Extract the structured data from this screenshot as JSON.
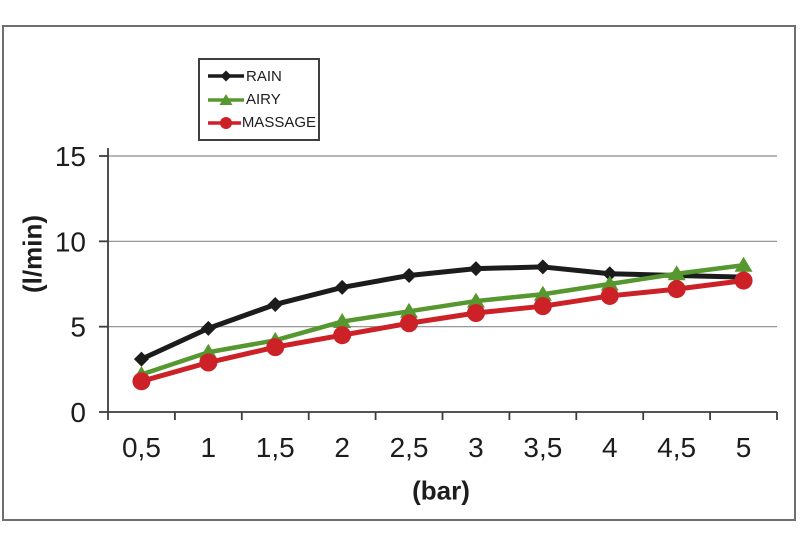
{
  "chart_data": {
    "type": "line",
    "title": "",
    "x_label": "(bar)",
    "y_label": "(l/min)",
    "categories": [
      "0,5",
      "1",
      "1,5",
      "2",
      "2,5",
      "3",
      "3,5",
      "4",
      "4,5",
      "5"
    ],
    "x_values": [
      0.5,
      1,
      1.5,
      2,
      2.5,
      3,
      3.5,
      4,
      4.5,
      5
    ],
    "y_ticks": [
      0,
      5,
      10,
      15
    ],
    "ylim": [
      0,
      15
    ],
    "grid": "horizontal-gridlines",
    "legend_position": "top-left-inside",
    "series": [
      {
        "name": "RAIN",
        "marker": "diamond",
        "color": "#1c1c1c",
        "values": [
          3.1,
          4.9,
          6.3,
          7.3,
          8.0,
          8.4,
          8.5,
          8.1,
          8.0,
          7.9
        ]
      },
      {
        "name": "AIRY",
        "marker": "triangle",
        "color": "#56982f",
        "values": [
          2.2,
          3.5,
          4.2,
          5.3,
          5.9,
          6.5,
          6.9,
          7.5,
          8.1,
          8.6
        ]
      },
      {
        "name": "MASSAGE",
        "marker": "circle",
        "color": "#cd2128",
        "values": [
          1.8,
          2.9,
          3.8,
          4.5,
          5.2,
          5.8,
          6.2,
          6.8,
          7.2,
          7.7
        ]
      }
    ]
  },
  "colors": {
    "background": "#ffffff",
    "frame_border": "#6f6f6f",
    "axis": "#3c3c3c",
    "gridline": "#8a8a8a",
    "text": "#1d1d1d",
    "legend_border": "#3f3f3f"
  }
}
